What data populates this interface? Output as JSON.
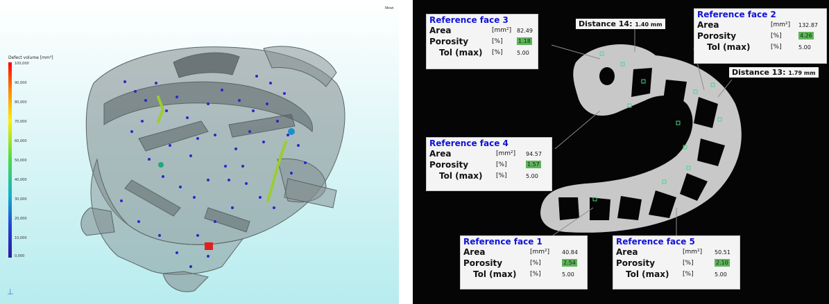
{
  "left_panel": {
    "legend": {
      "title": "Defect volume [mm³]",
      "ticks": [
        "100,000",
        "90,000",
        "80,000",
        "70,000",
        "60,000",
        "50,000",
        "40,000",
        "30,000",
        "20,000",
        "10,000",
        "0,000"
      ]
    },
    "corner_tag": "Mean"
  },
  "right_panel": {
    "reference_faces": [
      {
        "title": "Reference face 3",
        "area_label": "Area",
        "area_unit": "[mm²]",
        "area_value": "82.49",
        "porosity_label": "Porosity",
        "porosity_unit": "[%]",
        "porosity_value": "1.18",
        "tol_label": "Tol (max)",
        "tol_unit": "[%]",
        "tol_value": "5.00"
      },
      {
        "title": "Reference face 2",
        "area_label": "Area",
        "area_unit": "[mm²]",
        "area_value": "132.87",
        "porosity_label": "Porosity",
        "porosity_unit": "[%]",
        "porosity_value": "4.26",
        "tol_label": "Tol (max)",
        "tol_unit": "[%]",
        "tol_value": "5.00"
      },
      {
        "title": "Reference face 4",
        "area_label": "Area",
        "area_unit": "[mm²]",
        "area_value": "94.57",
        "porosity_label": "Porosity",
        "porosity_unit": "[%]",
        "porosity_value": "1.57",
        "tol_label": "Tol (max)",
        "tol_unit": "[%]",
        "tol_value": "5.00"
      },
      {
        "title": "Reference face 1",
        "area_label": "Area",
        "area_unit": "[mm²]",
        "area_value": "40.84",
        "porosity_label": "Porosity",
        "porosity_unit": "[%]",
        "porosity_value": "2.54",
        "tol_label": "Tol (max)",
        "tol_unit": "[%]",
        "tol_value": "5.00"
      },
      {
        "title": "Reference face 5",
        "area_label": "Area",
        "area_unit": "[mm²]",
        "area_value": "50.51",
        "porosity_label": "Porosity",
        "porosity_unit": "[%]",
        "porosity_value": "2.10",
        "tol_label": "Tol (max)",
        "tol_unit": "[%]",
        "tol_value": "5.00"
      }
    ],
    "distances": [
      {
        "name": "Distance 14:",
        "value": "1.40 mm"
      },
      {
        "name": "Distance 13:",
        "value": "1.79 mm"
      }
    ]
  }
}
